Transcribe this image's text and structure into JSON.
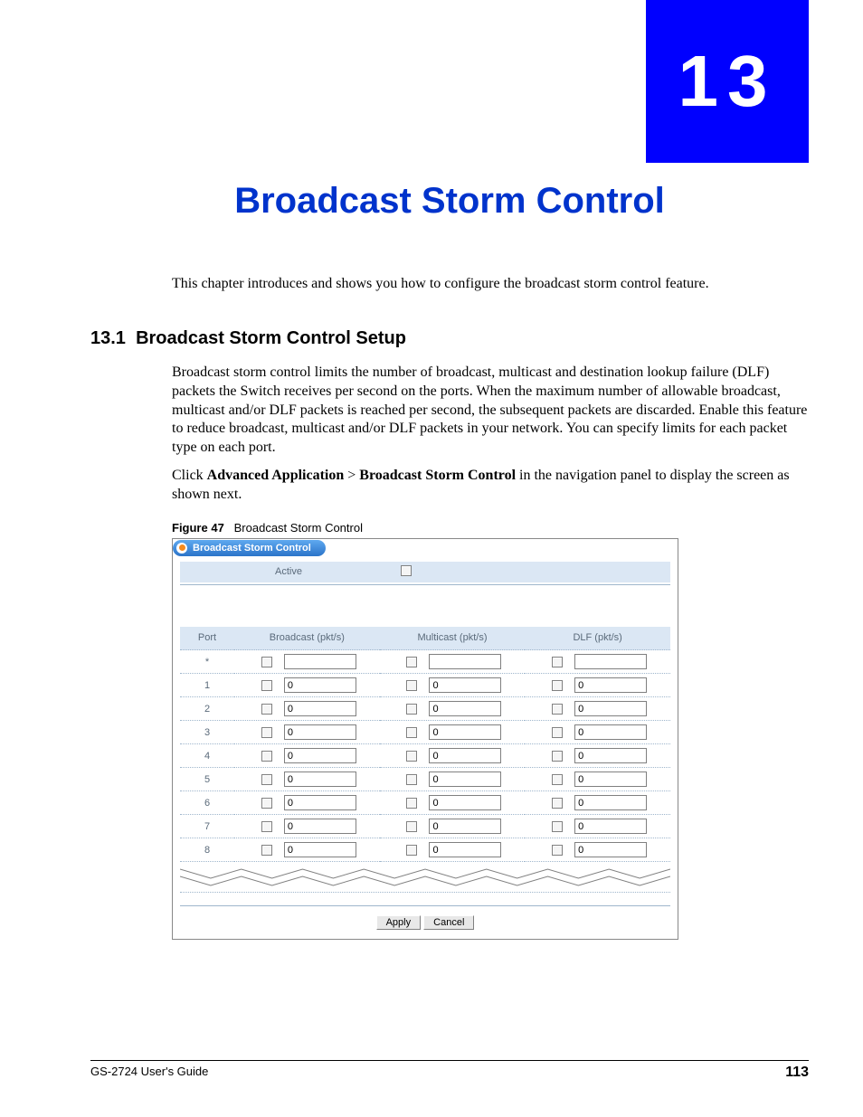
{
  "chapter": {
    "number": "13",
    "title": "Broadcast Storm Control"
  },
  "intro_text": "This chapter introduces and shows you how to configure the broadcast storm control feature.",
  "section": {
    "number": "13.1",
    "title": "Broadcast Storm Control Setup",
    "para1": "Broadcast storm control limits the number of broadcast, multicast and destination lookup failure (DLF) packets the Switch receives per second on the ports. When the maximum number of allowable broadcast, multicast and/or DLF packets is reached per second, the subsequent packets are discarded. Enable this feature to reduce broadcast, multicast and/or DLF packets in your network. You can specify limits for each packet type on each port.",
    "para2_pre": "Click ",
    "para2_bold1": "Advanced Application",
    "para2_mid": " > ",
    "para2_bold2": "Broadcast Storm Control",
    "para2_post": " in the navigation panel to display the screen as shown next."
  },
  "figure": {
    "label": "Figure 47",
    "caption": "Broadcast Storm Control"
  },
  "screenshot": {
    "panel_title": "Broadcast Storm Control",
    "active_label": "Active",
    "columns": {
      "port": "Port",
      "broadcast": "Broadcast (pkt/s)",
      "multicast": "Multicast (pkt/s)",
      "dlf": "DLF (pkt/s)"
    },
    "rows": [
      {
        "port": "*",
        "broadcast": "",
        "multicast": "",
        "dlf": ""
      },
      {
        "port": "1",
        "broadcast": "0",
        "multicast": "0",
        "dlf": "0"
      },
      {
        "port": "2",
        "broadcast": "0",
        "multicast": "0",
        "dlf": "0"
      },
      {
        "port": "3",
        "broadcast": "0",
        "multicast": "0",
        "dlf": "0"
      },
      {
        "port": "4",
        "broadcast": "0",
        "multicast": "0",
        "dlf": "0"
      },
      {
        "port": "5",
        "broadcast": "0",
        "multicast": "0",
        "dlf": "0"
      },
      {
        "port": "6",
        "broadcast": "0",
        "multicast": "0",
        "dlf": "0"
      },
      {
        "port": "7",
        "broadcast": "0",
        "multicast": "0",
        "dlf": "0"
      },
      {
        "port": "8",
        "broadcast": "0",
        "multicast": "0",
        "dlf": "0"
      }
    ],
    "buttons": {
      "apply": "Apply",
      "cancel": "Cancel"
    },
    "colors": {
      "header_row_bg": "#dbe7f4",
      "pill_gradient_top": "#5fa9f0",
      "pill_gradient_bottom": "#2b74c9",
      "dotted_line": "#9fb6cc",
      "text_muted": "#5a6a7a",
      "dot_outer": "#ffffff",
      "dot_inner": "#f68b1f"
    }
  },
  "footer": {
    "guide": "GS-2724 User's Guide",
    "page": "113"
  },
  "colors": {
    "chapter_block_bg": "#0000ff",
    "title_color": "#0033cc",
    "page_bg": "#ffffff"
  }
}
